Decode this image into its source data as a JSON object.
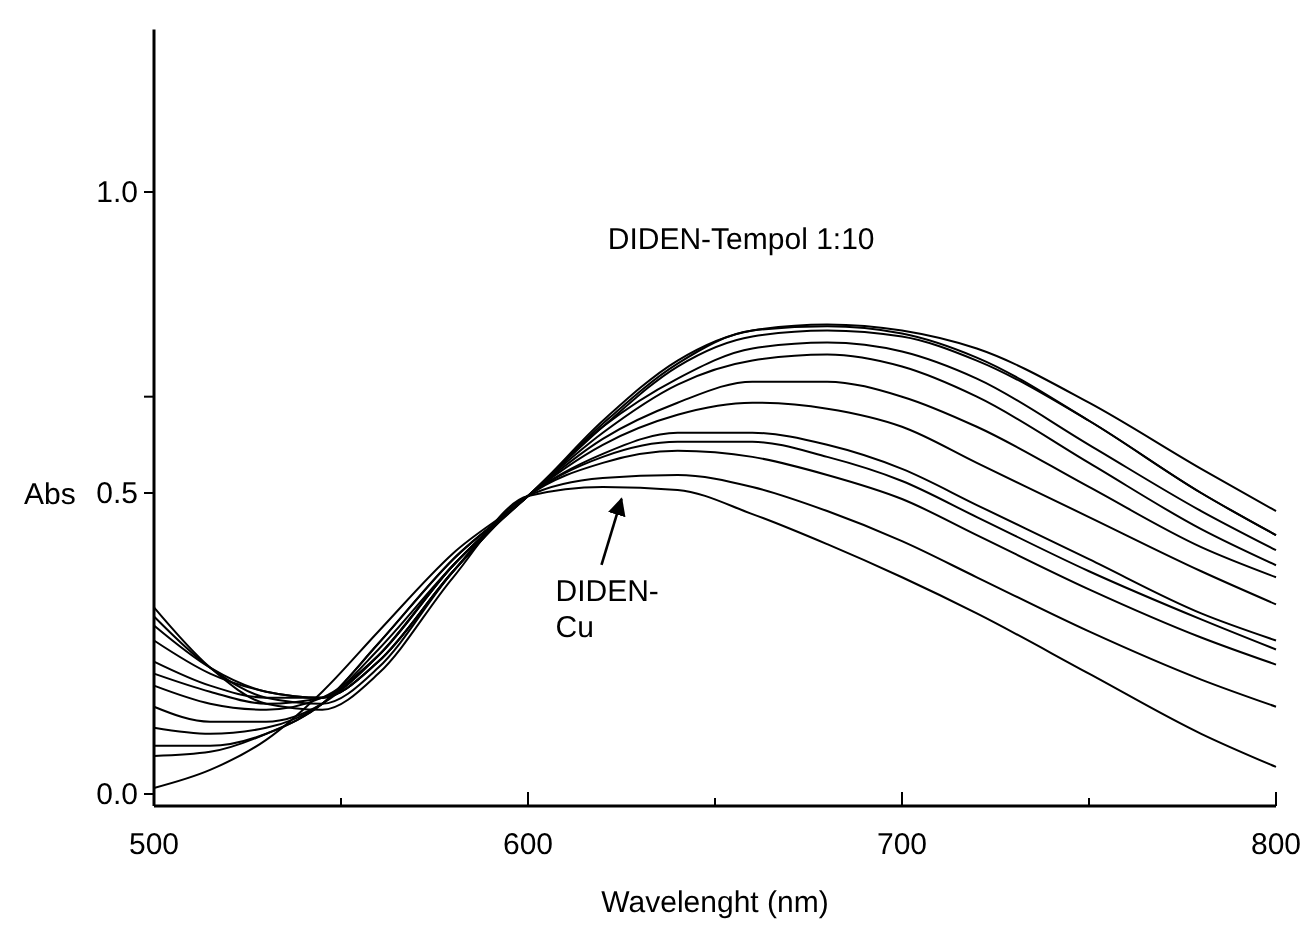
{
  "chart_data": {
    "type": "line",
    "xlabel": "Wavelenght (nm)",
    "ylabel": "Abs",
    "x": [
      500,
      515,
      530,
      545,
      560,
      580,
      600,
      620,
      640,
      660,
      680,
      700,
      720,
      750,
      780,
      800
    ],
    "xlim": [
      500,
      800
    ],
    "xticks": [
      500,
      {
        "value": 550,
        "label": null
      },
      600,
      {
        "value": 650,
        "label": null
      },
      700,
      {
        "value": 750,
        "label": null
      },
      800
    ],
    "ylim": [
      -0.02,
      1.27
    ],
    "yticks": [
      {
        "value": 0,
        "label": "0.0"
      },
      {
        "value": 0.5,
        "label": "0.5"
      },
      {
        "value": 0.66,
        "label": null
      },
      {
        "value": 1,
        "label": "1.0"
      }
    ],
    "line_style": "solid",
    "marker": "none",
    "annotations": [
      {
        "text": "DIDEN-Tempol 1:10"
      },
      {
        "text": "DIDEN-\nCu",
        "x": 625,
        "y": 0.51
      }
    ],
    "series": [
      {
        "color": "#000000",
        "values": [
          0.31,
          0.21,
          0.15,
          0.14,
          0.2,
          0.36,
          0.495,
          0.51,
          0.505,
          0.465,
          0.415,
          0.36,
          0.3,
          0.2,
          0.1,
          0.045
        ]
      },
      {
        "color": "#000000",
        "values": [
          0.295,
          0.21,
          0.16,
          0.15,
          0.21,
          0.37,
          0.495,
          0.525,
          0.53,
          0.51,
          0.47,
          0.42,
          0.36,
          0.27,
          0.19,
          0.145
        ]
      },
      {
        "color": "#000000",
        "values": [
          0.28,
          0.21,
          0.17,
          0.16,
          0.22,
          0.37,
          0.495,
          0.55,
          0.57,
          0.56,
          0.53,
          0.49,
          0.43,
          0.34,
          0.26,
          0.215
        ]
      },
      {
        "color": "#000000",
        "values": [
          0.255,
          0.2,
          0.17,
          0.16,
          0.22,
          0.37,
          0.495,
          0.56,
          0.585,
          0.585,
          0.56,
          0.52,
          0.46,
          0.37,
          0.29,
          0.24
        ]
      },
      {
        "color": "#000000",
        "values": [
          0.22,
          0.18,
          0.16,
          0.16,
          0.22,
          0.37,
          0.495,
          0.565,
          0.6,
          0.6,
          0.58,
          0.54,
          0.48,
          0.39,
          0.3,
          0.255
        ]
      },
      {
        "color": "#000000",
        "values": [
          0.2,
          0.17,
          0.15,
          0.16,
          0.23,
          0.38,
          0.495,
          0.58,
          0.63,
          0.65,
          0.64,
          0.61,
          0.55,
          0.46,
          0.37,
          0.315
        ]
      },
      {
        "color": "#000000",
        "values": [
          0.18,
          0.15,
          0.14,
          0.16,
          0.23,
          0.38,
          0.495,
          0.59,
          0.65,
          0.685,
          0.685,
          0.66,
          0.61,
          0.51,
          0.41,
          0.36
        ]
      },
      {
        "color": "#000000",
        "values": [
          0.145,
          0.12,
          0.12,
          0.15,
          0.23,
          0.38,
          0.495,
          0.6,
          0.68,
          0.72,
          0.73,
          0.71,
          0.66,
          0.55,
          0.44,
          0.38
        ]
      },
      {
        "color": "#000000",
        "values": [
          0.11,
          0.1,
          0.11,
          0.15,
          0.24,
          0.38,
          0.495,
          0.61,
          0.69,
          0.74,
          0.75,
          0.735,
          0.69,
          0.58,
          0.47,
          0.405
        ]
      },
      {
        "color": "#000000",
        "values": [
          0.08,
          0.08,
          0.1,
          0.15,
          0.25,
          0.39,
          0.495,
          0.61,
          0.71,
          0.76,
          0.77,
          0.76,
          0.72,
          0.62,
          0.5,
          0.43
        ]
      },
      {
        "color": "#000000",
        "values": [
          0.063,
          0.07,
          0.1,
          0.15,
          0.25,
          0.39,
          0.495,
          0.615,
          0.715,
          0.77,
          0.777,
          0.765,
          0.725,
          0.62,
          0.5,
          0.43
        ]
      },
      {
        "color": "#000000",
        "values": [
          0.01,
          0.04,
          0.09,
          0.17,
          0.27,
          0.4,
          0.495,
          0.62,
          0.72,
          0.77,
          0.78,
          0.77,
          0.74,
          0.65,
          0.54,
          0.47
        ]
      }
    ]
  }
}
